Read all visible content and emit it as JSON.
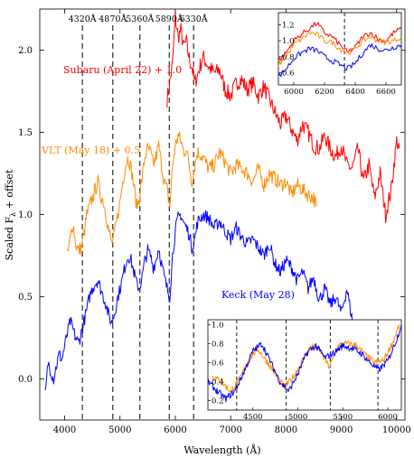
{
  "chart_data": {
    "type": "line",
    "xlabel": "Wavelength (Å)",
    "ylabel": "Scaled F_λ + offset",
    "xlim": [
      3550,
      10150
    ],
    "ylim": [
      -0.25,
      2.25
    ],
    "xticks": [
      4000,
      5000,
      6000,
      7000,
      8000,
      9000,
      10000
    ],
    "yticks": [
      0.0,
      0.5,
      1.0,
      1.5,
      2.0
    ],
    "xtick_labels": [
      "4000",
      "5000",
      "6000",
      "7000",
      "8000",
      "9000",
      "10000"
    ],
    "ytick_labels": [
      "0.0",
      "0.5",
      "1.0",
      "1.5",
      "2.0"
    ],
    "reference_lines": [
      {
        "x": 4320,
        "label": "4320Å"
      },
      {
        "x": 4870,
        "label": "4870Å"
      },
      {
        "x": 5360,
        "label": "5360Å"
      },
      {
        "x": 5890,
        "label": "5890Å"
      },
      {
        "x": 6330,
        "label": "6330Å"
      }
    ],
    "series": [
      {
        "name": "Subaru (April 22) + 1.0",
        "color": "#ff0000",
        "x": [
          5850,
          5900,
          5950,
          6000,
          6050,
          6100,
          6150,
          6200,
          6250,
          6300,
          6350,
          6400,
          6500,
          6600,
          6700,
          6800,
          6900,
          7000,
          7100,
          7200,
          7300,
          7400,
          7500,
          7600,
          7700,
          7800,
          7900,
          8000,
          8100,
          8200,
          8300,
          8400,
          8500,
          8600,
          8700,
          8800,
          8900,
          9000,
          9100,
          9200,
          9300,
          9400,
          9500,
          9600,
          9700,
          9800,
          9900,
          10000,
          10050
        ],
        "y": [
          1.7,
          1.8,
          1.92,
          2.2,
          2.08,
          2.12,
          2.02,
          2.05,
          1.95,
          1.9,
          1.8,
          1.85,
          1.96,
          1.9,
          1.86,
          1.88,
          1.76,
          1.72,
          1.8,
          1.82,
          1.76,
          1.8,
          1.72,
          1.78,
          1.7,
          1.62,
          1.55,
          1.6,
          1.52,
          1.45,
          1.55,
          1.5,
          1.42,
          1.4,
          1.48,
          1.4,
          1.35,
          1.42,
          1.3,
          1.28,
          1.4,
          1.2,
          1.3,
          1.1,
          1.25,
          1.0,
          1.15,
          1.45,
          1.4
        ]
      },
      {
        "name": "VLT (May 18) + 0.5",
        "color": "#ff8c00",
        "x": [
          4050,
          4100,
          4150,
          4200,
          4250,
          4300,
          4350,
          4400,
          4450,
          4500,
          4550,
          4600,
          4650,
          4700,
          4750,
          4800,
          4850,
          4900,
          4950,
          5000,
          5050,
          5100,
          5150,
          5200,
          5250,
          5300,
          5350,
          5400,
          5450,
          5500,
          5550,
          5600,
          5650,
          5700,
          5750,
          5800,
          5850,
          5900,
          5950,
          6000,
          6050,
          6100,
          6150,
          6200,
          6250,
          6300,
          6350,
          6400,
          6500,
          6600,
          6700,
          6800,
          6900,
          7000,
          7100,
          7200,
          7300,
          7400,
          7500,
          7600,
          7700,
          7800,
          7900,
          8000,
          8100,
          8200,
          8300,
          8400,
          8500,
          8550
        ],
        "y": [
          0.75,
          0.85,
          0.95,
          0.82,
          0.78,
          0.8,
          0.88,
          1.0,
          1.05,
          1.1,
          1.15,
          1.2,
          1.12,
          1.08,
          1.0,
          0.9,
          0.82,
          0.88,
          0.98,
          1.08,
          1.2,
          1.3,
          1.35,
          1.28,
          1.18,
          1.05,
          1.1,
          1.22,
          1.35,
          1.4,
          1.38,
          1.3,
          1.35,
          1.42,
          1.3,
          1.2,
          1.15,
          1.05,
          1.3,
          1.42,
          1.48,
          1.45,
          1.38,
          1.4,
          1.3,
          1.2,
          1.3,
          1.38,
          1.35,
          1.28,
          1.3,
          1.38,
          1.32,
          1.25,
          1.3,
          1.28,
          1.25,
          1.2,
          1.28,
          1.18,
          1.25,
          1.22,
          1.18,
          1.2,
          1.12,
          1.18,
          1.15,
          1.12,
          1.1,
          1.05
        ]
      },
      {
        "name": "Keck (May 28)",
        "color": "#0000ff",
        "x": [
          3650,
          3700,
          3750,
          3800,
          3850,
          3900,
          3950,
          4000,
          4050,
          4100,
          4150,
          4200,
          4250,
          4300,
          4350,
          4400,
          4450,
          4500,
          4550,
          4600,
          4650,
          4700,
          4750,
          4800,
          4850,
          4900,
          4950,
          5000,
          5050,
          5100,
          5150,
          5200,
          5250,
          5300,
          5350,
          5400,
          5450,
          5500,
          5550,
          5600,
          5650,
          5700,
          5750,
          5800,
          5850,
          5900,
          5950,
          6000,
          6050,
          6100,
          6150,
          6200,
          6250,
          6300,
          6350,
          6400,
          6500,
          6600,
          6700,
          6800,
          6900,
          7000,
          7100,
          7200,
          7300,
          7400,
          7500,
          7600,
          7700,
          7800,
          7900,
          8000,
          8100,
          8200,
          8300,
          8400,
          8500,
          8600,
          8700,
          8800,
          8900,
          9000,
          9100,
          9200,
          9300
        ],
        "y": [
          -0.1,
          0.1,
          0.05,
          0.0,
          0.08,
          0.15,
          0.12,
          0.2,
          0.28,
          0.35,
          0.3,
          0.25,
          0.22,
          0.28,
          0.35,
          0.42,
          0.5,
          0.55,
          0.58,
          0.6,
          0.55,
          0.5,
          0.45,
          0.38,
          0.34,
          0.4,
          0.48,
          0.55,
          0.62,
          0.7,
          0.75,
          0.72,
          0.65,
          0.58,
          0.55,
          0.62,
          0.72,
          0.78,
          0.75,
          0.68,
          0.72,
          0.8,
          0.7,
          0.62,
          0.55,
          0.5,
          0.75,
          0.9,
          0.98,
          1.0,
          0.95,
          0.92,
          0.88,
          0.8,
          0.85,
          0.95,
          1.0,
          0.98,
          0.92,
          0.96,
          0.9,
          0.85,
          0.92,
          0.86,
          0.82,
          0.85,
          0.8,
          0.75,
          0.82,
          0.7,
          0.65,
          0.72,
          0.68,
          0.6,
          0.65,
          0.55,
          0.62,
          0.48,
          0.55,
          0.45,
          0.5,
          0.4,
          0.55,
          0.35,
          0.3
        ]
      }
    ],
    "series_labels": [
      {
        "text": "Subaru (April 22) + 1.0",
        "color": "#ff0000"
      },
      {
        "text": "VLT (May 18) + 0.5",
        "color": "#ff8c00"
      },
      {
        "text": "Keck (May 28)",
        "color": "#0000ff"
      }
    ],
    "insets": [
      {
        "position": "top-right",
        "xlim": [
          5900,
          6700
        ],
        "ylim": [
          0.45,
          1.35
        ],
        "xticks": [
          6000,
          6200,
          6400,
          6600
        ],
        "yticks": [
          0.6,
          0.8,
          1.0,
          1.2
        ],
        "xtick_labels": [
          "6000",
          "6200",
          "6400",
          "6600"
        ],
        "ytick_labels": [
          "0.6",
          "0.8",
          "1.0",
          "1.2"
        ],
        "reference_lines": [
          6330
        ],
        "series": [
          {
            "color": "#ff0000",
            "x": [
              5900,
              5950,
              6000,
              6050,
              6100,
              6150,
              6200,
              6250,
              6300,
              6350,
              6400,
              6450,
              6500,
              6550,
              6600,
              6650,
              6700
            ],
            "y": [
              0.75,
              0.85,
              1.0,
              1.08,
              1.15,
              1.22,
              1.1,
              1.05,
              0.95,
              0.85,
              0.92,
              1.05,
              1.1,
              1.02,
              1.0,
              1.1,
              1.15
            ]
          },
          {
            "color": "#ff8c00",
            "x": [
              5900,
              5950,
              6000,
              6050,
              6100,
              6150,
              6200,
              6250,
              6300,
              6350,
              6400,
              6450,
              6500,
              6550,
              6600,
              6650,
              6700
            ],
            "y": [
              0.7,
              0.8,
              0.95,
              1.02,
              1.1,
              1.08,
              1.0,
              0.98,
              0.9,
              0.85,
              0.9,
              1.0,
              1.05,
              1.0,
              0.98,
              1.0,
              1.05
            ]
          },
          {
            "color": "#0000ff",
            "x": [
              5900,
              5950,
              6000,
              6050,
              6100,
              6150,
              6200,
              6250,
              6300,
              6350,
              6400,
              6450,
              6500,
              6550,
              6600,
              6650,
              6700
            ],
            "y": [
              0.55,
              0.65,
              0.78,
              0.85,
              0.9,
              0.88,
              0.8,
              0.75,
              0.7,
              0.65,
              0.72,
              0.85,
              0.95,
              0.9,
              0.88,
              0.92,
              0.95
            ]
          }
        ]
      },
      {
        "position": "bottom-right",
        "xlim": [
          4000,
          6150
        ],
        "ylim": [
          0.1,
          1.05
        ],
        "xticks": [
          4500,
          5000,
          5500,
          6000
        ],
        "yticks": [
          0.2,
          0.4,
          0.6,
          0.8,
          1.0
        ],
        "xtick_labels": [
          "4500",
          "5000",
          "5500",
          "6000"
        ],
        "ytick_labels": [
          "0.2",
          "0.4",
          "0.6",
          "0.8",
          "1.0"
        ],
        "reference_lines": [
          4320,
          4870,
          5360,
          5890
        ],
        "series": [
          {
            "color": "#ff8c00",
            "x": [
              4050,
              4150,
              4250,
              4350,
              4450,
              4550,
              4650,
              4750,
              4850,
              4950,
              5050,
              5150,
              5250,
              5350,
              5450,
              5550,
              5650,
              5750,
              5850,
              5950,
              6050,
              6130
            ],
            "y": [
              0.45,
              0.4,
              0.3,
              0.42,
              0.62,
              0.75,
              0.62,
              0.48,
              0.34,
              0.45,
              0.62,
              0.78,
              0.72,
              0.55,
              0.78,
              0.8,
              0.78,
              0.68,
              0.6,
              0.62,
              0.8,
              1.0
            ]
          },
          {
            "color": "#0000ff",
            "x": [
              4000,
              4100,
              4200,
              4300,
              4400,
              4500,
              4600,
              4700,
              4800,
              4900,
              5000,
              5100,
              5200,
              5300,
              5400,
              5500,
              5600,
              5700,
              5800,
              5900,
              6000,
              6100,
              6150
            ],
            "y": [
              0.4,
              0.3,
              0.22,
              0.3,
              0.5,
              0.72,
              0.8,
              0.6,
              0.4,
              0.3,
              0.48,
              0.7,
              0.78,
              0.65,
              0.7,
              0.78,
              0.75,
              0.7,
              0.6,
              0.52,
              0.62,
              0.85,
              1.0
            ]
          }
        ]
      }
    ]
  }
}
